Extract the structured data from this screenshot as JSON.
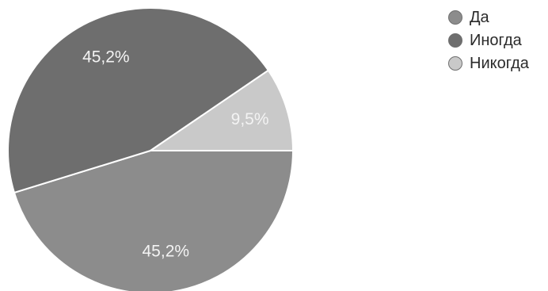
{
  "chart_data": {
    "type": "pie",
    "title": "",
    "slices": [
      {
        "name": "Да",
        "value": 45.2,
        "label": "45,2%",
        "color": "#8c8c8c"
      },
      {
        "name": "Иногда",
        "value": 45.2,
        "label": "45,2%",
        "color": "#6e6e6e"
      },
      {
        "name": "Никогда",
        "value": 9.5,
        "label": "9,5%",
        "color": "#c9c9c9"
      }
    ],
    "legend_position": "top-right"
  }
}
